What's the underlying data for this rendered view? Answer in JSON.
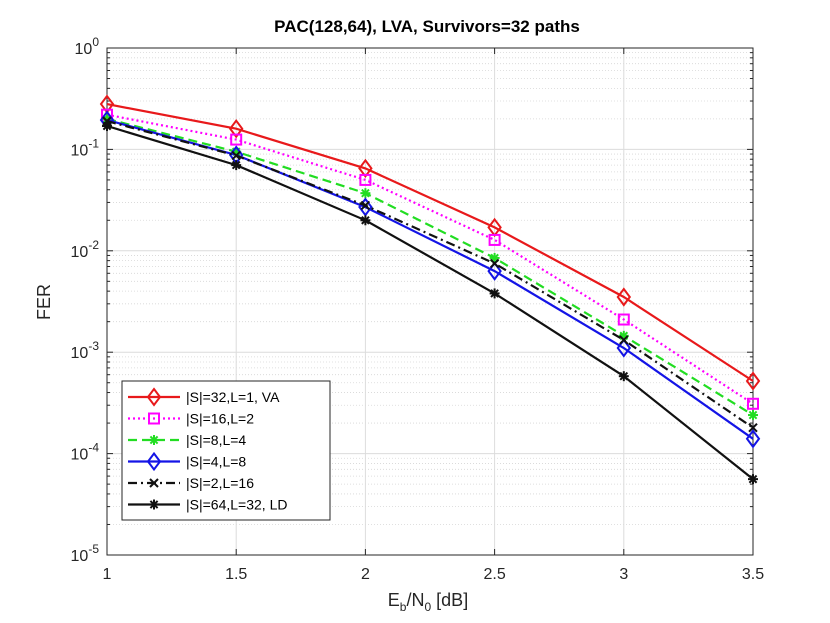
{
  "chart_data": {
    "type": "line",
    "title": "PAC(128,64), LVA, Survivors=32 paths",
    "xlabel": "E_b/N_0 [dB]",
    "xlabel_parts": {
      "e": "E",
      "b": "b",
      "slash": "/N",
      "zero": "0",
      "unit": " [dB]"
    },
    "ylabel": "FER",
    "yscale": "log",
    "xlim": [
      1,
      3.5
    ],
    "ylim": [
      1e-05,
      1
    ],
    "grid": true,
    "legend_position": "bottom-left",
    "x": [
      1,
      1.5,
      2,
      2.5,
      3,
      3.5
    ],
    "x_tick_labels": [
      "1",
      "1.5",
      "2",
      "2.5",
      "3",
      "3.5"
    ],
    "y_tick_labels": [
      {
        "base": "10",
        "exp": "-5"
      },
      {
        "base": "10",
        "exp": "-4"
      },
      {
        "base": "10",
        "exp": "-3"
      },
      {
        "base": "10",
        "exp": "-2"
      },
      {
        "base": "10",
        "exp": "-1"
      },
      {
        "base": "10",
        "exp": "0"
      }
    ],
    "series": [
      {
        "name": "|S|=32,L=1, VA",
        "color": "#e8191b",
        "dash": "solid",
        "marker": "diamond",
        "values": [
          0.28,
          0.16,
          0.065,
          0.017,
          0.0035,
          0.00052
        ]
      },
      {
        "name": "|S|=16,L=2",
        "color": "#ff00ff",
        "dash": "dotted",
        "marker": "square",
        "values": [
          0.22,
          0.125,
          0.05,
          0.0128,
          0.0021,
          0.00031
        ]
      },
      {
        "name": "|S|=8,L=4",
        "color": "#22dd22",
        "dash": "dashed",
        "marker": "asterisk",
        "values": [
          0.2,
          0.095,
          0.037,
          0.0085,
          0.00145,
          0.00024
        ]
      },
      {
        "name": "|S|=4,L=8",
        "color": "#1414e6",
        "dash": "solid",
        "marker": "diamond",
        "values": [
          0.195,
          0.088,
          0.027,
          0.0063,
          0.0011,
          0.00014
        ]
      },
      {
        "name": "|S|=2,L=16",
        "color": "#111111",
        "dash": "dashdot",
        "marker": "x",
        "values": [
          0.19,
          0.087,
          0.028,
          0.0075,
          0.00132,
          0.00018
        ]
      },
      {
        "name": "|S|=64,L=32, LD",
        "color": "#111111",
        "dash": "solid",
        "marker": "asterisk",
        "values": [
          0.17,
          0.07,
          0.02,
          0.0038,
          0.00058,
          5.6e-05
        ]
      }
    ]
  }
}
